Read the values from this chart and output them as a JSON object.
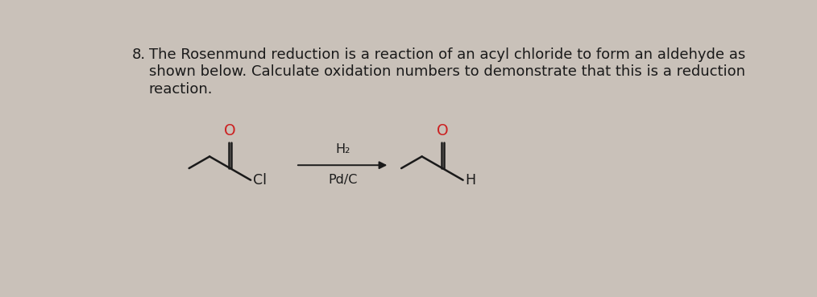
{
  "background_color": "#c9c1b9",
  "text_color": "#1a1a1a",
  "red_color": "#cc2222",
  "question_number": "8.",
  "question_text_line1": "The Rosenmund reduction is a reaction of an acyl chloride to form an aldehyde as",
  "question_text_line2": "shown below. Calculate oxidation numbers to demonstrate that this is a reduction",
  "question_text_line3": "reaction.",
  "reagent_top": "H₂",
  "reagent_bottom": "Pd/C",
  "label_cl": "Cl",
  "label_h": "H",
  "label_o": "O",
  "fontsize_text": 13.0,
  "fontsize_reagent": 11.5,
  "fontsize_struct": 12.5,
  "fontsize_o": 13.5
}
